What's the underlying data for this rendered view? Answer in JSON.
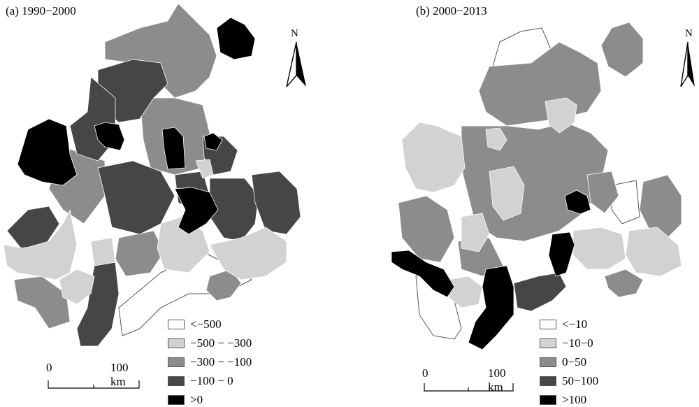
{
  "colors": {
    "lt_-500": "#ffffff",
    "c_-500_-300": "#d2d2d2",
    "c_-300_-100": "#8c8c8c",
    "c_-100_0": "#464646",
    "gt_0": "#000000",
    "b_lt_-10": "#ffffff",
    "b_-10_0": "#d2d2d2",
    "b_0_50": "#8c8c8c",
    "b_50_100": "#464646",
    "b_gt_100": "#000000"
  },
  "panel_a": {
    "title": "(a) 1990−2000",
    "north_label": "N",
    "scale": {
      "start": "0",
      "end": "100 km"
    },
    "legend": [
      {
        "label": "<−500",
        "color": "#ffffff"
      },
      {
        "label": "−500 − −300",
        "color": "#d2d2d2"
      },
      {
        "label": "−300 − −100",
        "color": "#8c8c8c"
      },
      {
        "label": "−100 − 0",
        "color": "#464646"
      },
      {
        "label": ">0",
        "color": "#000000"
      }
    ]
  },
  "panel_b": {
    "title": "(b) 2000−2013",
    "north_label": "N",
    "scale": {
      "start": "0",
      "end": "100 km"
    },
    "legend": [
      {
        "label": "<−10",
        "color": "#ffffff"
      },
      {
        "label": "−10−0",
        "color": "#d2d2d2"
      },
      {
        "label": "0−50",
        "color": "#8c8c8c"
      },
      {
        "label": "50−100",
        "color": "#464646"
      },
      {
        "label": ">100",
        "color": "#000000"
      }
    ]
  }
}
